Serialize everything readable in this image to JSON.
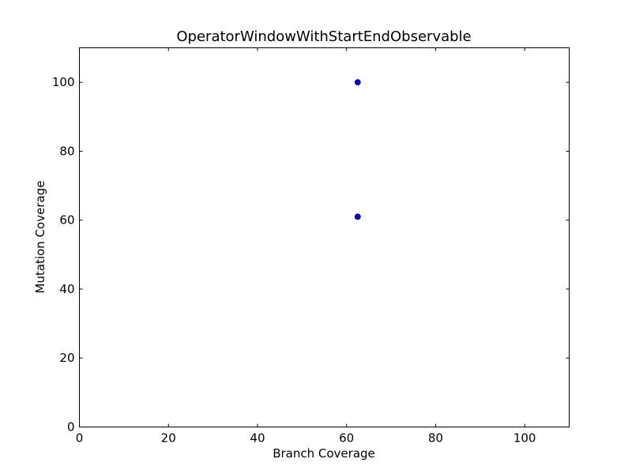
{
  "chart_data": {
    "type": "scatter",
    "title": "OperatorWindowWithStartEndObservable",
    "xlabel": "Branch Coverage",
    "ylabel": "Mutation Coverage",
    "xlim": [
      0,
      110
    ],
    "ylim": [
      0,
      110
    ],
    "xticks": [
      0,
      20,
      40,
      60,
      80,
      100
    ],
    "yticks": [
      0,
      20,
      40,
      60,
      80,
      100
    ],
    "grid": false,
    "marker_color": "#0000ff",
    "marker_edge_color": "#000000",
    "points": [
      {
        "x": 62.5,
        "y": 100
      },
      {
        "x": 62.5,
        "y": 61
      }
    ]
  }
}
